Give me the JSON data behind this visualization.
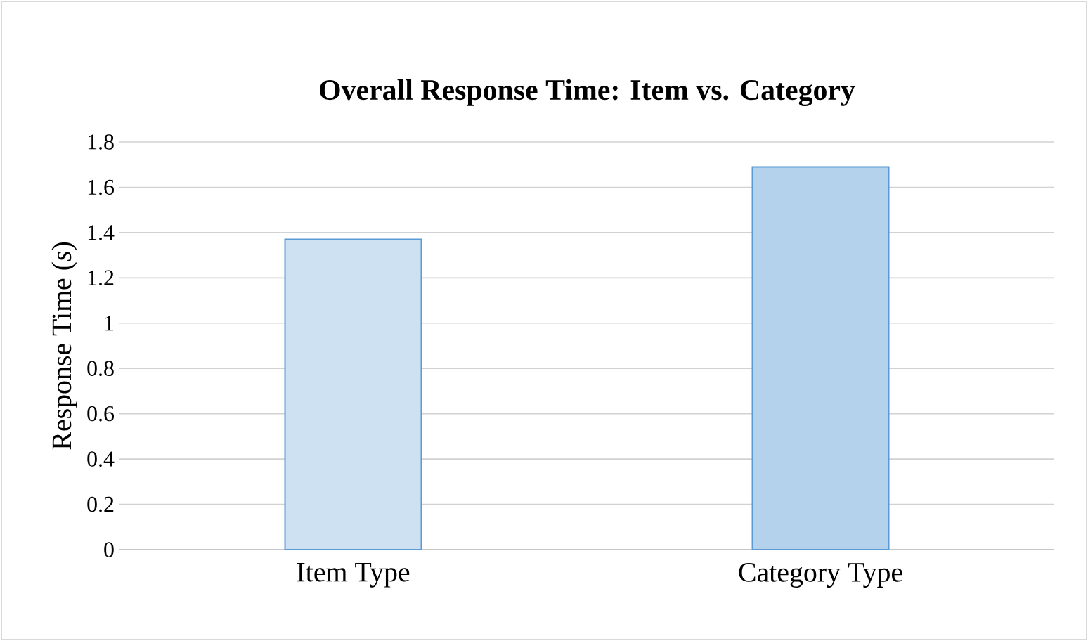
{
  "chart_data": {
    "type": "bar",
    "title": "Overall  Response Time: Item vs. Category",
    "ylabel": "Response Time (*s*)",
    "categories": [
      "Item Type",
      "Category Type"
    ],
    "values": [
      1.37,
      1.69
    ],
    "color": "#5b9bd5",
    "ylim": [
      0,
      1.8
    ],
    "yticks": [
      0,
      0.2,
      0.4,
      0.6,
      0.8,
      1,
      1.2,
      1.4,
      1.6,
      1.8
    ],
    "grid": "y"
  }
}
